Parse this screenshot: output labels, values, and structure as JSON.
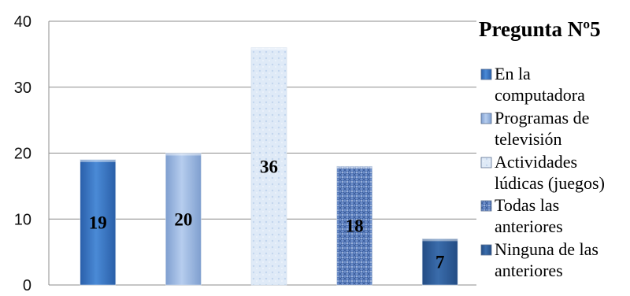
{
  "chart_data": {
    "type": "bar",
    "title": "Pregunta Nº5",
    "categories": [
      "En la computadora",
      "Programas de televisión",
      "Actividades lúdicas (juegos)",
      "Todas las anteriores",
      "Ninguna de las anteriores"
    ],
    "values": [
      19,
      20,
      36,
      18,
      7
    ],
    "ylim": [
      0,
      40
    ],
    "yticks": [
      "0",
      "10",
      "20",
      "30",
      "40"
    ],
    "grid": true,
    "legend_position": "right",
    "legend_entries": [
      [
        "En la",
        "computadora"
      ],
      [
        "Programas de",
        "televisión"
      ],
      [
        "Actividades",
        "lúdicas (juegos)"
      ],
      [
        "Todas las",
        "anteriores"
      ],
      [
        "Ninguna de las",
        "anteriores"
      ]
    ],
    "colors": [
      "#3d7ac8",
      "#9ab8e0",
      "#d6e4f4",
      "#5b80c4",
      "#2e5d99"
    ]
  }
}
